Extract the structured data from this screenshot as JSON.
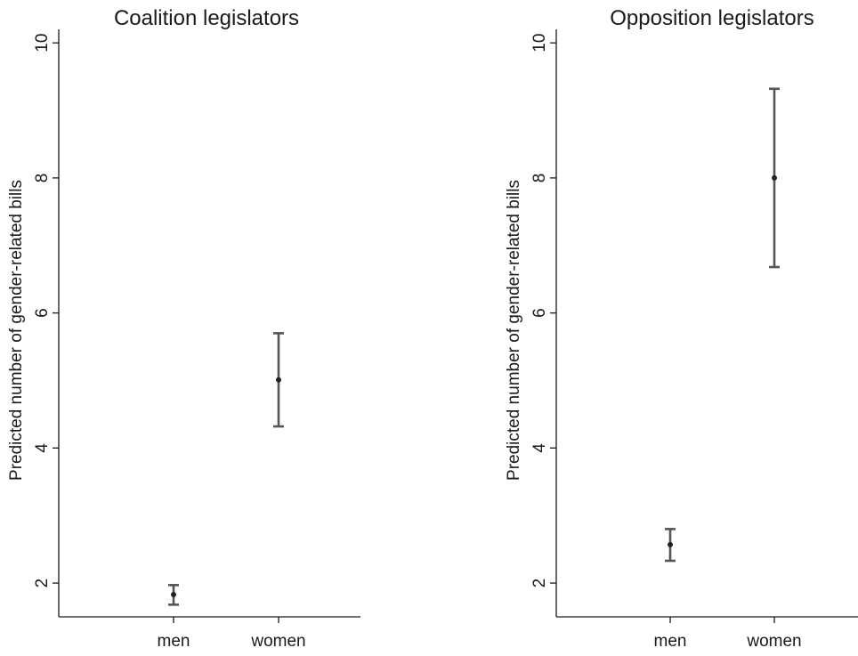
{
  "chart_data": [
    {
      "type": "scatter",
      "title": "Coalition legislators",
      "xlabel": "",
      "ylabel": "Predicted number of gender-related bills",
      "categories": [
        "men",
        "women"
      ],
      "ylim": [
        1.5,
        10.2
      ],
      "yticks": [
        2,
        4,
        6,
        8,
        10
      ],
      "grid": false,
      "legend": "none",
      "points": [
        {
          "x": "men",
          "y": 1.83,
          "lower": 1.68,
          "upper": 1.97
        },
        {
          "x": "women",
          "y": 5.01,
          "lower": 4.32,
          "upper": 5.7
        }
      ]
    },
    {
      "type": "scatter",
      "title": "Opposition legislators",
      "xlabel": "",
      "ylabel": "Predicted number of gender-related bills",
      "categories": [
        "men",
        "women"
      ],
      "ylim": [
        1.5,
        10.2
      ],
      "yticks": [
        2,
        4,
        6,
        8,
        10
      ],
      "grid": false,
      "legend": "none",
      "points": [
        {
          "x": "men",
          "y": 2.57,
          "lower": 2.33,
          "upper": 2.8
        },
        {
          "x": "women",
          "y": 8.0,
          "lower": 6.68,
          "upper": 9.32
        }
      ]
    }
  ]
}
